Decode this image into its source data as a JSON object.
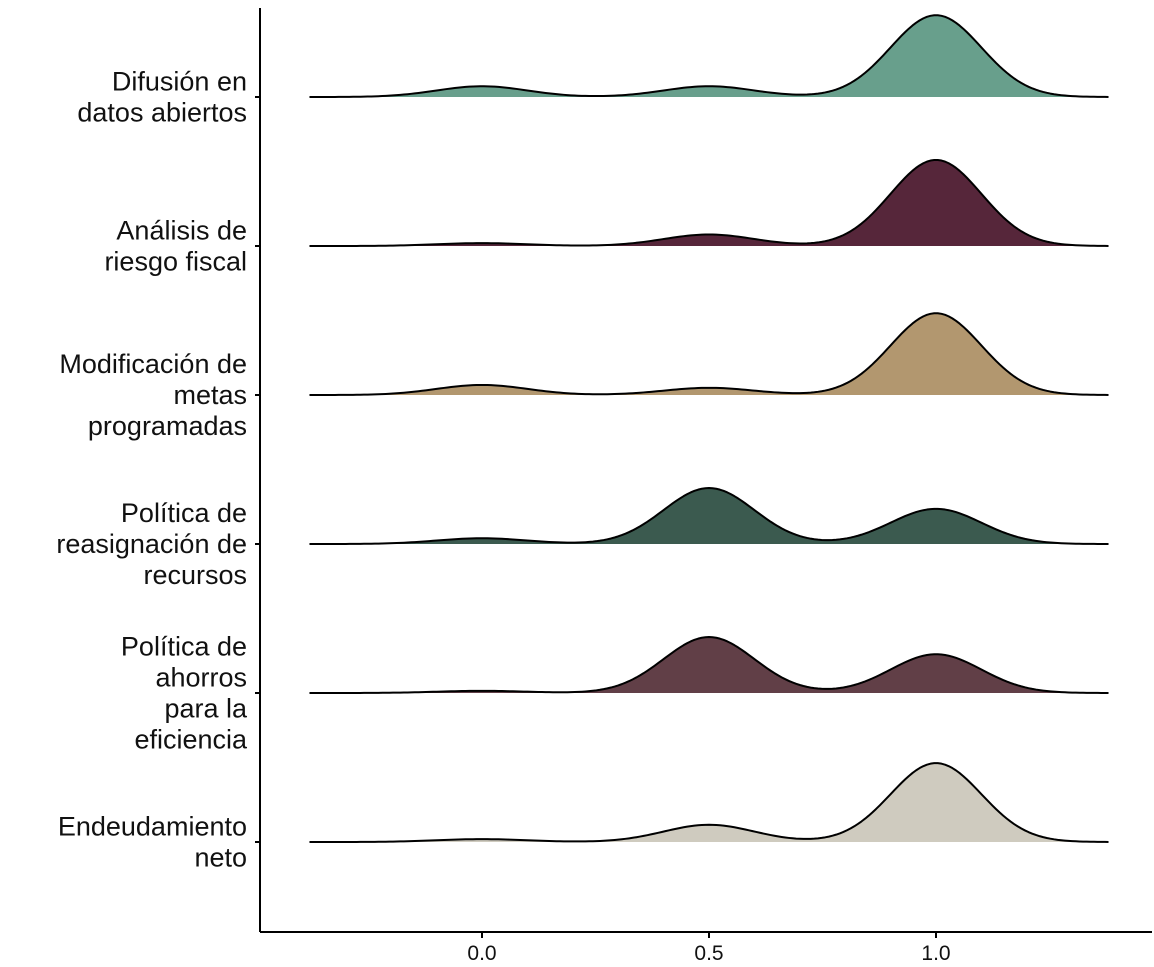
{
  "chart_data": {
    "type": "ridgeline",
    "title": "",
    "xlabel": "",
    "ylabel": "",
    "xlim": [
      -0.38,
      1.38
    ],
    "x_ticks": [
      0.0,
      0.5,
      1.0
    ],
    "x_tick_labels": [
      "0.0",
      "0.5",
      "1.0"
    ],
    "grid": false,
    "legend": "none",
    "kernel_bandwidth": 0.1,
    "series": [
      {
        "label": [
          "Difusión en",
          "datos abiertos"
        ],
        "color": "#689f8c",
        "weights": [
          0.075,
          0.075,
          0.57
        ]
      },
      {
        "label": [
          "Análisis de",
          "riesgo fiscal"
        ],
        "color": "#56263a",
        "weights": [
          0.02,
          0.08,
          0.6
        ]
      },
      {
        "label": [
          "Modificación de",
          "metas",
          "programadas"
        ],
        "color": "#b2976f",
        "weights": [
          0.07,
          0.05,
          0.57
        ]
      },
      {
        "label": [
          "Política de",
          "reasignación de",
          "recursos"
        ],
        "color": "#3b5a4f",
        "weights": [
          0.04,
          0.39,
          0.245
        ]
      },
      {
        "label": [
          "Política de",
          "ahorros",
          "para la",
          "eficiencia"
        ],
        "color": "#613f47",
        "weights": [
          0.015,
          0.39,
          0.27
        ]
      },
      {
        "label": [
          "Endeudamiento",
          "neto"
        ],
        "color": "#cfcbbf",
        "weights": [
          0.02,
          0.12,
          0.55
        ]
      }
    ]
  }
}
